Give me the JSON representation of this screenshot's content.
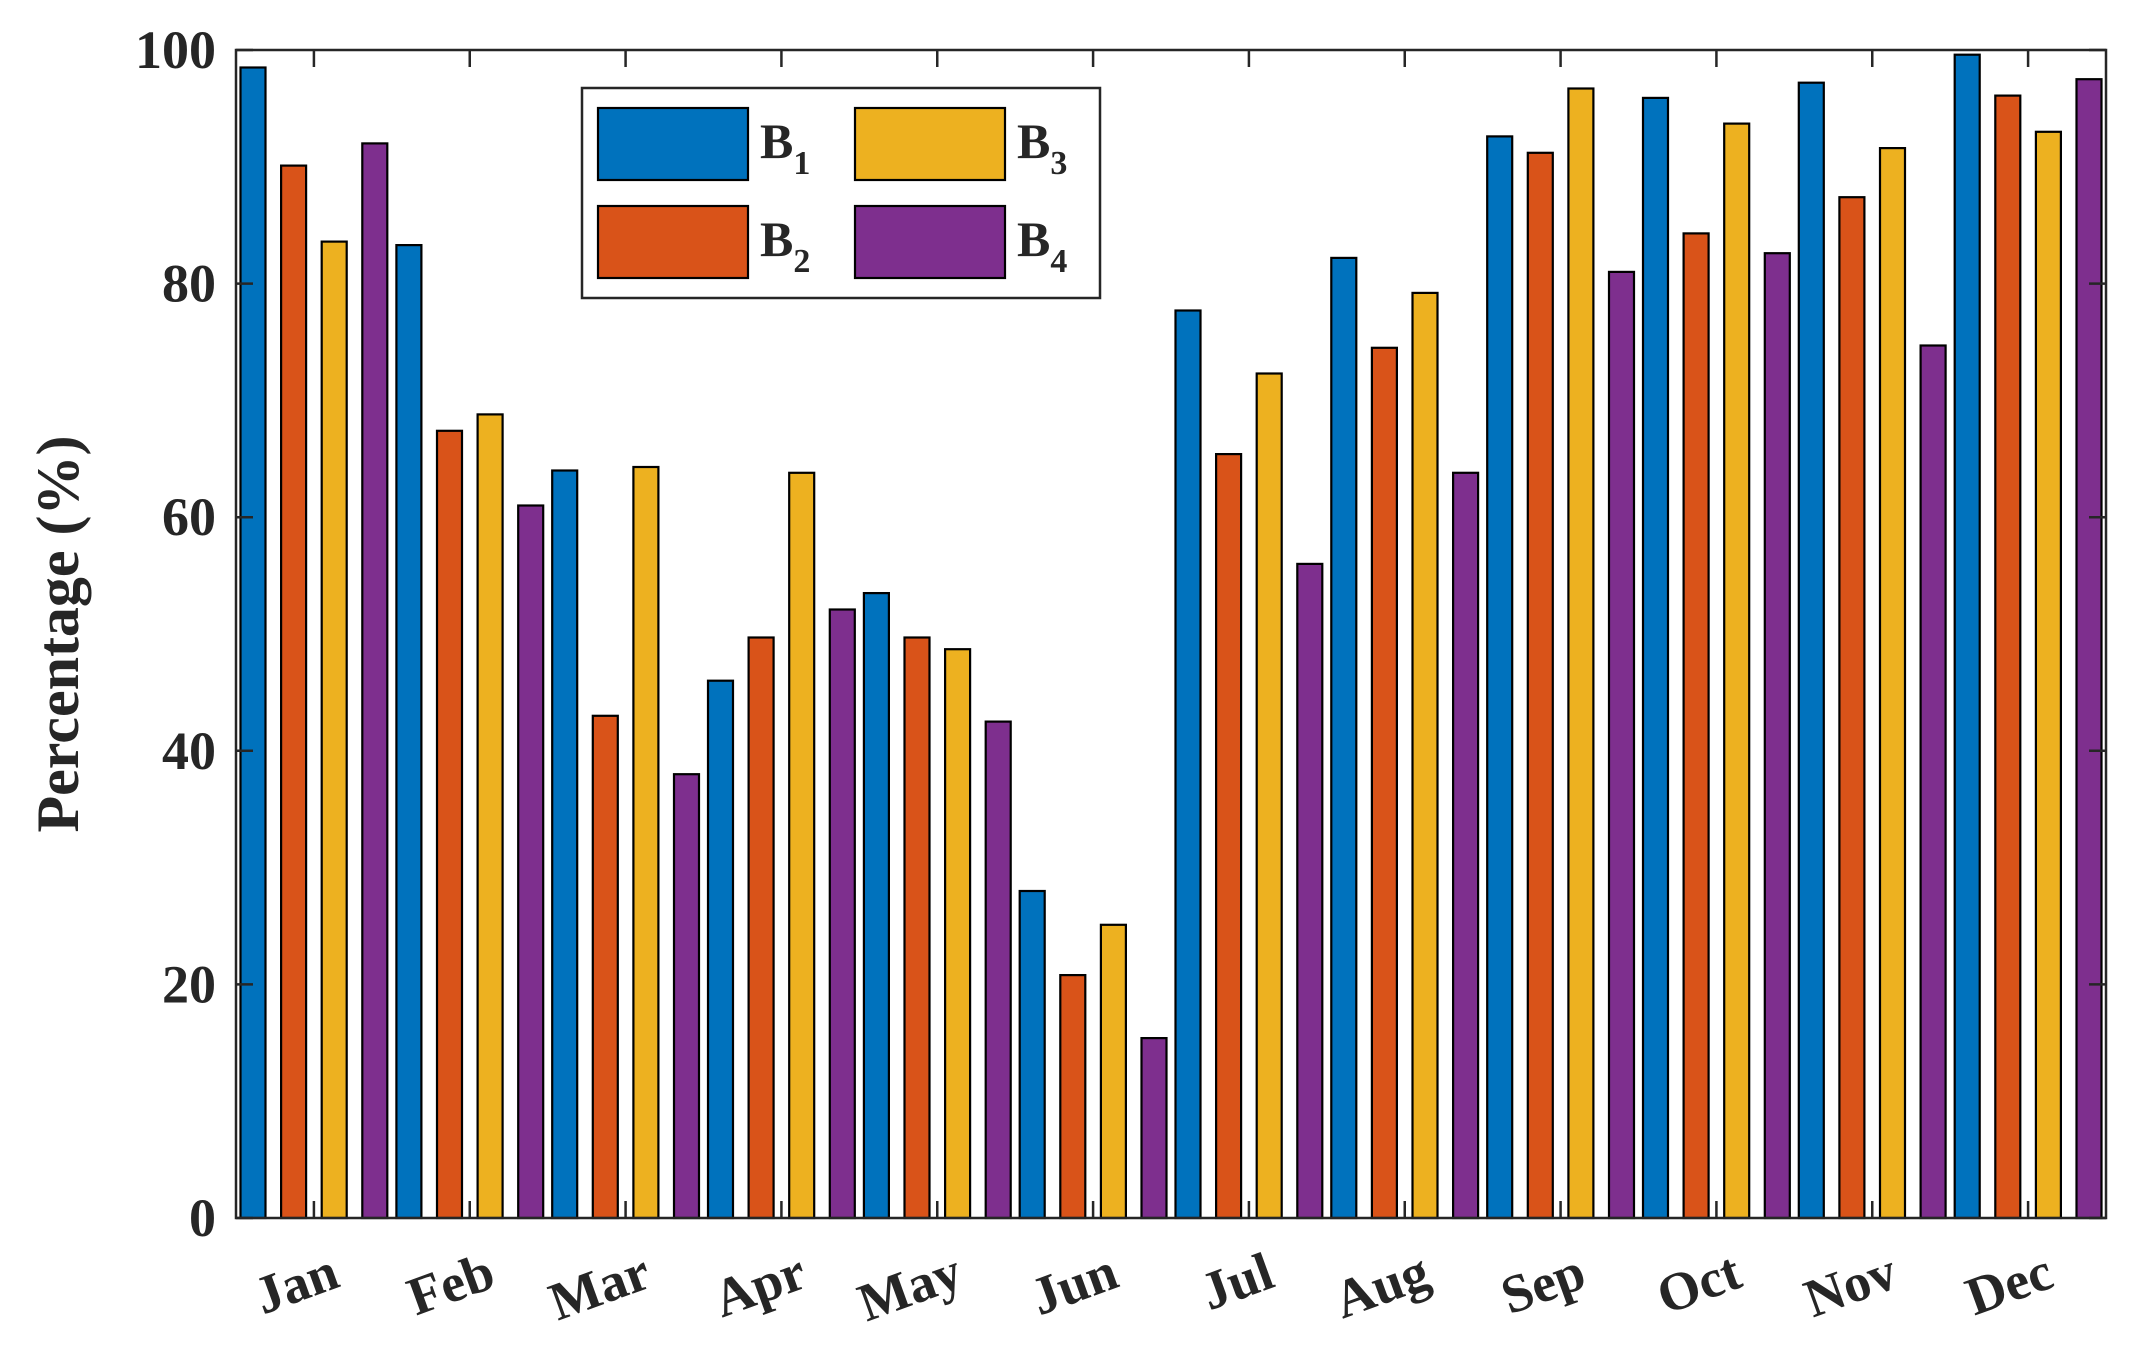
{
  "chart_data": {
    "type": "bar",
    "title": "",
    "xlabel": "",
    "ylabel": "Percentage (%)",
    "ylim": [
      0,
      100
    ],
    "yticks": [
      0,
      20,
      40,
      60,
      80,
      100
    ],
    "ytick_labels": [
      "0",
      "20",
      "40",
      "60",
      "80",
      "100"
    ],
    "grid": false,
    "legend_position": "top-left",
    "categories": [
      "Jan",
      "Feb",
      "Mar",
      "Apr",
      "May",
      "Jun",
      "Jul",
      "Aug",
      "Sep",
      "Oct",
      "Nov",
      "Dec"
    ],
    "series": [
      {
        "name": "B1",
        "base": "B",
        "sub": "1",
        "color": "#0072BD",
        "values": [
          98.5,
          83.3,
          64.0,
          46.0,
          53.5,
          28.0,
          77.7,
          82.2,
          92.6,
          95.9,
          97.2,
          99.6
        ]
      },
      {
        "name": "B2",
        "base": "B",
        "sub": "2",
        "color": "#D95319",
        "values": [
          90.1,
          67.4,
          43.0,
          49.7,
          49.7,
          20.8,
          65.4,
          74.5,
          91.2,
          84.3,
          87.4,
          96.1
        ]
      },
      {
        "name": "B3",
        "base": "B",
        "sub": "3",
        "color": "#EDB120",
        "values": [
          83.6,
          68.8,
          64.3,
          63.8,
          48.7,
          25.1,
          72.3,
          79.2,
          96.7,
          93.7,
          91.6,
          93.0
        ]
      },
      {
        "name": "B4",
        "base": "B",
        "sub": "4",
        "color": "#7E2F8E",
        "values": [
          92.0,
          61.0,
          38.0,
          52.1,
          42.5,
          15.4,
          56.0,
          63.8,
          81.0,
          82.6,
          74.7,
          97.5
        ]
      }
    ]
  }
}
